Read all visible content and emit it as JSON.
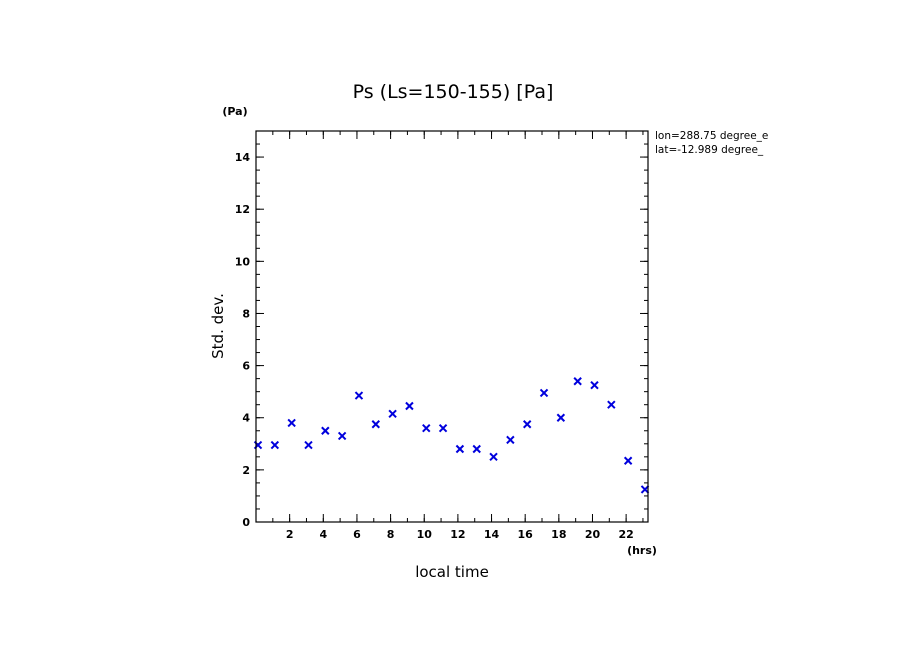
{
  "chart_data": {
    "type": "scatter",
    "title": "Ps (Ls=150-155) [Pa]",
    "xlabel": "local time",
    "ylabel": "Std. dev.",
    "xunit": "(hrs)",
    "yunit": "(Pa)",
    "xlim": [
      0,
      23.3
    ],
    "ylim": [
      0,
      15
    ],
    "xticks": [
      2,
      4,
      6,
      8,
      10,
      12,
      14,
      16,
      18,
      20,
      22
    ],
    "yticks": [
      0,
      2,
      4,
      6,
      8,
      10,
      12,
      14
    ],
    "grid": false,
    "marker": "x",
    "color": "#0000dd",
    "info_lines": [
      "lon=288.75 degree_e",
      "lat=-12.989 degree_"
    ],
    "series": [
      {
        "x": [
          0.12,
          1.12,
          2.12,
          3.12,
          4.12,
          5.12,
          6.12,
          7.12,
          8.12,
          9.12,
          10.12,
          11.12,
          12.12,
          13.12,
          14.12,
          15.12,
          16.12,
          17.12,
          18.12,
          19.12,
          20.12,
          21.12,
          22.12,
          23.12
        ],
        "y": [
          2.95,
          2.95,
          3.8,
          2.95,
          3.5,
          3.3,
          4.85,
          3.75,
          4.15,
          4.45,
          3.6,
          3.6,
          2.8,
          2.8,
          2.5,
          3.15,
          3.75,
          4.95,
          4.0,
          5.4,
          5.25,
          4.5,
          2.35,
          1.25
        ]
      }
    ]
  }
}
